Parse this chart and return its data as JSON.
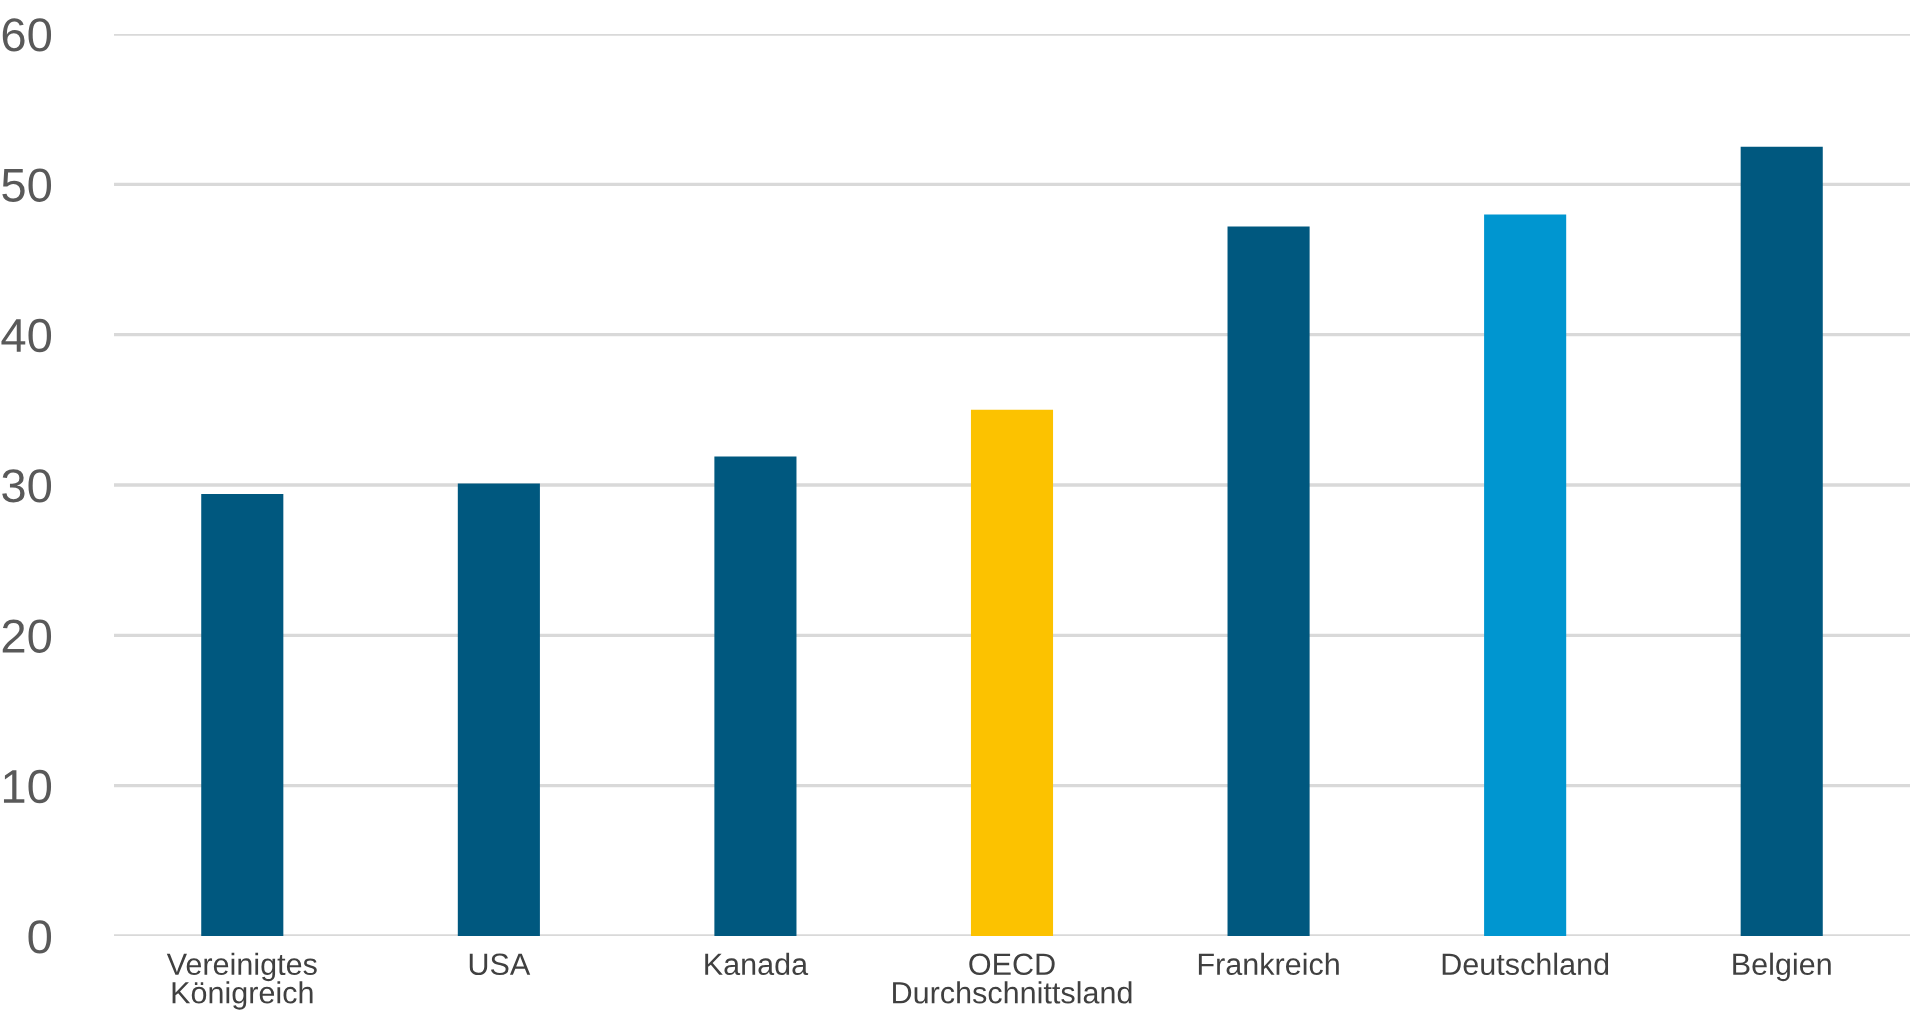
{
  "chart_data": {
    "type": "bar",
    "categories": [
      "Vereinigtes\nKönigreich",
      "USA",
      "Kanada",
      "OECD\nDurchschnittsland",
      "Frankreich",
      "Deutschland",
      "Belgien"
    ],
    "values": [
      29.4,
      30.1,
      31.9,
      35.0,
      47.2,
      48.0,
      52.5
    ],
    "colors": [
      "#00587f",
      "#00587f",
      "#00587f",
      "#fcc200",
      "#00587f",
      "#0096d0",
      "#00587f"
    ],
    "ylim": [
      0,
      60
    ],
    "yticks": [
      0,
      10,
      20,
      30,
      40,
      50,
      60
    ],
    "grid": "y",
    "legend": false
  }
}
